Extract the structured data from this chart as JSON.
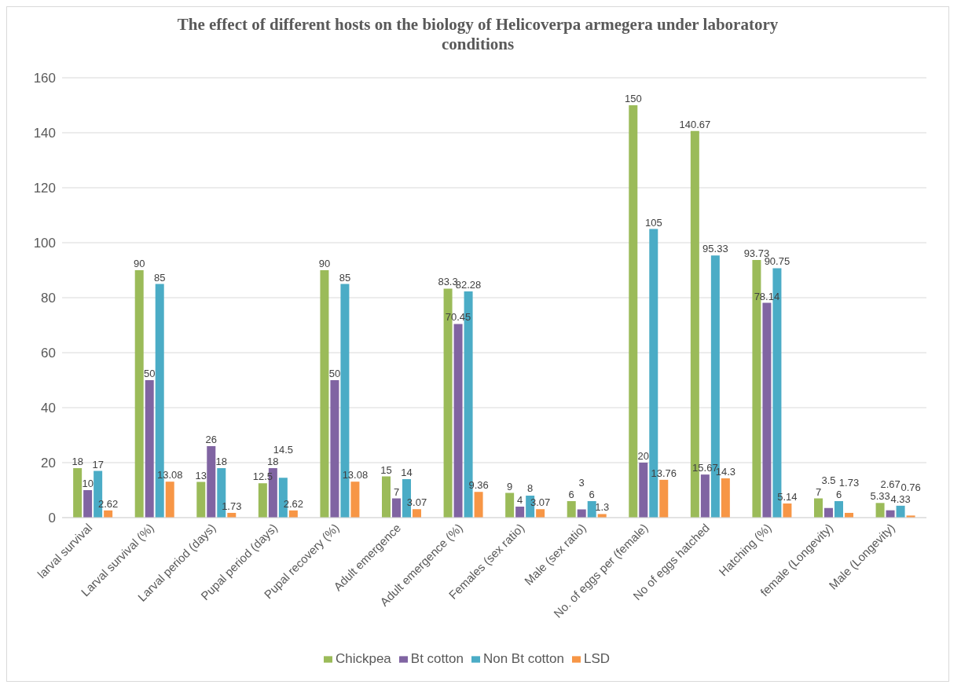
{
  "chart_data": {
    "type": "bar",
    "title": "The effect of different hosts on the biology of Helicoverpa armegera under laboratory conditions",
    "categories": [
      "larval survival",
      "Larval survival (%)",
      "Larval period (days)",
      "Pupal period (days)",
      "Pupal recovery (%)",
      "Adult emergence",
      "Adult emergence (%)",
      "Females (sex ratio)",
      "Male (sex ratio)",
      "No. of eggs per (female)",
      "No of eggs hatched",
      "Hatching (%)",
      "female (Longevity)",
      "Male (Longevity)"
    ],
    "series": [
      {
        "name": "Chickpea",
        "color": "#9bbb59",
        "values": [
          18,
          90,
          13,
          12.5,
          90,
          15,
          83.3,
          9,
          6,
          150,
          140.67,
          93.73,
          7,
          5.33
        ]
      },
      {
        "name": "Bt cotton",
        "color": "#8064a2",
        "values": [
          10,
          50,
          26,
          18,
          50,
          7,
          70.45,
          4,
          3,
          20,
          15.67,
          78.14,
          3.5,
          2.67
        ]
      },
      {
        "name": "Non Bt cotton",
        "color": "#4bacc6",
        "values": [
          17,
          85,
          18,
          14.5,
          85,
          14,
          82.28,
          8,
          6,
          105,
          95.33,
          90.75,
          6,
          4.33
        ]
      },
      {
        "name": "LSD",
        "color": "#f79646",
        "values": [
          2.62,
          13.08,
          1.73,
          2.62,
          13.08,
          3.07,
          9.36,
          3.07,
          1.3,
          13.76,
          14.3,
          5.14,
          1.73,
          0.76
        ]
      }
    ],
    "ylim": [
      0,
      160
    ],
    "yticks": [
      0,
      20,
      40,
      60,
      80,
      100,
      120,
      140,
      160
    ],
    "grid": "y",
    "legend": "bottom",
    "data_labels": true
  }
}
